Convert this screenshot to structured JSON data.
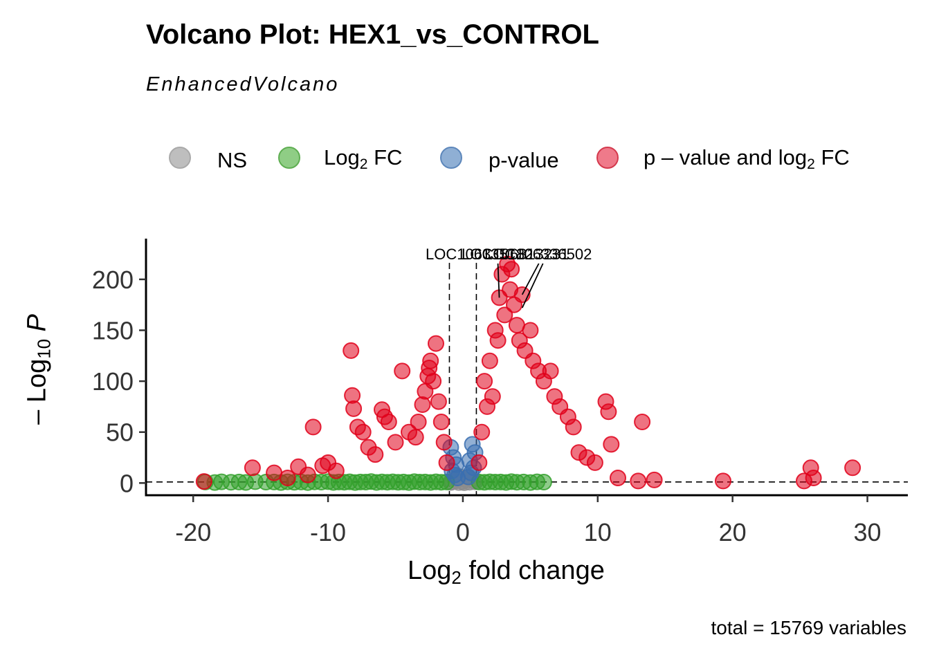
{
  "title": "Volcano Plot: HEX1_vs_CONTROL",
  "subtitle": "EnhancedVolcano",
  "caption": "total = 15769 variables",
  "legend": {
    "items": [
      {
        "key": "ns",
        "label": "NS",
        "color": "#bebebe",
        "border": "#a9a9a9"
      },
      {
        "key": "log2fc",
        "label_main": "Log",
        "label_sub": "2",
        "label_tail": " FC",
        "color": "#8fcd85",
        "border": "#5fae52"
      },
      {
        "key": "pvalue",
        "label": "p-value",
        "color": "#8fafd4",
        "border": "#5d87bb"
      },
      {
        "key": "both",
        "label_main": "p – value and log",
        "label_sub": "2",
        "label_tail": " FC",
        "color": "#ef7a8a",
        "border": "#d4394d"
      }
    ]
  },
  "axes": {
    "xlabel_main": "Log",
    "xlabel_sub": "2",
    "xlabel_tail": " fold change",
    "ylabel_prefix": "– Log",
    "ylabel_sub": "10",
    "ylabel_p": "P"
  },
  "chart_data": {
    "type": "scatter",
    "title": "Volcano Plot: HEX1_vs_CONTROL",
    "subtitle": "EnhancedVolcano",
    "xlabel": "Log2 fold change",
    "ylabel": "– Log10 P",
    "xlim": [
      -23.5,
      33
    ],
    "ylim": [
      -12,
      240
    ],
    "xticks": [
      -20,
      -10,
      0,
      10,
      20,
      30
    ],
    "xtick_labels": [
      "-20",
      "-10",
      "0",
      "10",
      "20",
      "30"
    ],
    "yticks": [
      0,
      50,
      100,
      150,
      200
    ],
    "ytick_labels": [
      "0",
      "50",
      "100",
      "150",
      "200"
    ],
    "grid": false,
    "legend_position": "top",
    "fc_cutoff": [
      -1,
      1
    ],
    "p_cutoff_line": 1,
    "colors": {
      "ns": "#8c8c8c",
      "log2fc": "#33a02c",
      "pvalue": "#3a6fb0",
      "both": "#e0001a"
    },
    "highlight_labels": [
      {
        "label": "LOC106335182",
        "x": 2.7,
        "y": 182
      },
      {
        "label": "LOC106313231",
        "x": 4.4,
        "y": 185
      },
      {
        "label": "LOC106336502",
        "x": 4.4,
        "y": 172
      }
    ],
    "series": [
      {
        "name": "NS",
        "points": [
          [
            -0.8,
            1
          ],
          [
            -0.5,
            2
          ],
          [
            -0.3,
            0.5
          ],
          [
            0,
            1.5
          ],
          [
            0.2,
            3
          ],
          [
            0.5,
            0.8
          ],
          [
            0.8,
            2
          ],
          [
            -0.6,
            4
          ],
          [
            0.4,
            5
          ],
          [
            -0.2,
            6
          ],
          [
            0.1,
            0.3
          ],
          [
            -0.9,
            0.6
          ],
          [
            0.9,
            1.1
          ],
          [
            0.6,
            3.5
          ],
          [
            -0.4,
            7
          ]
        ]
      },
      {
        "name": "Log2 FC",
        "points": [
          [
            -19.1,
            1
          ],
          [
            -18.4,
            0.5
          ],
          [
            -17.9,
            1.2
          ],
          [
            -17.2,
            0.8
          ],
          [
            -16.6,
            1
          ],
          [
            -16.1,
            0.6
          ],
          [
            -15.4,
            1.3
          ],
          [
            -14.6,
            0.9
          ],
          [
            -14.0,
            1
          ],
          [
            -13.5,
            0.5
          ],
          [
            -13.0,
            1.2
          ],
          [
            -12.5,
            0.7
          ],
          [
            -12.0,
            1
          ],
          [
            -11.5,
            0.4
          ],
          [
            -11.0,
            1.1
          ],
          [
            -10.5,
            0.9
          ],
          [
            -10.0,
            1.3
          ],
          [
            -9.6,
            0.6
          ],
          [
            -9.2,
            1
          ],
          [
            -8.8,
            0.8
          ],
          [
            -8.4,
            1.2
          ],
          [
            -8.0,
            0.5
          ],
          [
            -7.6,
            1
          ],
          [
            -7.2,
            0.9
          ],
          [
            -6.8,
            1.4
          ],
          [
            -6.4,
            0.6
          ],
          [
            -6.0,
            1.1
          ],
          [
            -5.6,
            0.8
          ],
          [
            -5.2,
            1.2
          ],
          [
            -4.8,
            0.7
          ],
          [
            -4.4,
            1
          ],
          [
            -4.0,
            0.5
          ],
          [
            -3.6,
            1.3
          ],
          [
            -3.2,
            0.9
          ],
          [
            -2.8,
            1
          ],
          [
            -2.4,
            0.6
          ],
          [
            -2.0,
            1.2
          ],
          [
            -1.6,
            0.8
          ],
          [
            -1.2,
            1
          ],
          [
            1.2,
            1
          ],
          [
            1.6,
            0.7
          ],
          [
            2.0,
            1.2
          ],
          [
            2.4,
            0.9
          ],
          [
            2.8,
            1
          ],
          [
            3.2,
            0.6
          ],
          [
            3.6,
            1.3
          ],
          [
            4.0,
            0.8
          ],
          [
            4.5,
            1
          ],
          [
            5.0,
            0.5
          ],
          [
            5.5,
            1.2
          ],
          [
            6.0,
            0.9
          ]
        ]
      },
      {
        "name": "p-value",
        "points": [
          [
            -0.9,
            35
          ],
          [
            -0.7,
            25
          ],
          [
            -0.5,
            18
          ],
          [
            -0.8,
            12
          ],
          [
            -0.6,
            8
          ],
          [
            0.7,
            38
          ],
          [
            0.9,
            30
          ],
          [
            0.5,
            22
          ],
          [
            0.8,
            15
          ],
          [
            0.6,
            10
          ],
          [
            0.4,
            6
          ],
          [
            -0.4,
            5
          ]
        ]
      },
      {
        "name": "p – value and log2 FC",
        "points": [
          [
            -19.2,
            1.5
          ],
          [
            -15.6,
            15
          ],
          [
            -14.0,
            10
          ],
          [
            -12.2,
            16
          ],
          [
            -10.4,
            17
          ],
          [
            -10.0,
            20
          ],
          [
            -9.4,
            12
          ],
          [
            -8.3,
            130
          ],
          [
            -8.2,
            86
          ],
          [
            -8.1,
            73
          ],
          [
            -7.8,
            55
          ],
          [
            -7.4,
            50
          ],
          [
            -7.0,
            35
          ],
          [
            -6.5,
            28
          ],
          [
            -6.0,
            72
          ],
          [
            -5.8,
            65
          ],
          [
            -5.5,
            60
          ],
          [
            -5.0,
            40
          ],
          [
            -4.5,
            110
          ],
          [
            -4.0,
            50
          ],
          [
            -3.5,
            45
          ],
          [
            -3.3,
            60
          ],
          [
            -3.0,
            77
          ],
          [
            -2.8,
            90
          ],
          [
            -2.6,
            105
          ],
          [
            -2.5,
            113
          ],
          [
            -2.4,
            120
          ],
          [
            -2.2,
            100
          ],
          [
            -2.0,
            137
          ],
          [
            -1.8,
            80
          ],
          [
            -1.6,
            60
          ],
          [
            -1.4,
            40
          ],
          [
            -1.2,
            20
          ],
          [
            -11.1,
            55
          ],
          [
            -11.5,
            8
          ],
          [
            -13.0,
            5
          ],
          [
            1.2,
            20
          ],
          [
            1.4,
            50
          ],
          [
            1.6,
            100
          ],
          [
            1.8,
            75
          ],
          [
            2.0,
            120
          ],
          [
            2.2,
            85
          ],
          [
            2.4,
            150
          ],
          [
            2.6,
            140
          ],
          [
            2.7,
            182
          ],
          [
            2.9,
            205
          ],
          [
            3.1,
            165
          ],
          [
            3.3,
            215
          ],
          [
            3.5,
            190
          ],
          [
            3.6,
            210
          ],
          [
            3.8,
            175
          ],
          [
            4.0,
            155
          ],
          [
            4.2,
            140
          ],
          [
            4.4,
            185
          ],
          [
            4.6,
            130
          ],
          [
            5.0,
            150
          ],
          [
            5.2,
            120
          ],
          [
            5.6,
            110
          ],
          [
            6.0,
            100
          ],
          [
            6.5,
            110
          ],
          [
            6.8,
            85
          ],
          [
            7.2,
            75
          ],
          [
            7.8,
            65
          ],
          [
            8.2,
            55
          ],
          [
            8.6,
            30
          ],
          [
            9.2,
            25
          ],
          [
            9.8,
            20
          ],
          [
            10.6,
            80
          ],
          [
            10.8,
            70
          ],
          [
            11.0,
            38
          ],
          [
            11.5,
            5
          ],
          [
            13.0,
            2
          ],
          [
            13.3,
            60
          ],
          [
            14.2,
            3
          ],
          [
            19.3,
            2
          ],
          [
            25.3,
            2
          ],
          [
            25.8,
            15
          ],
          [
            26.0,
            5
          ],
          [
            28.9,
            15
          ]
        ]
      }
    ]
  }
}
